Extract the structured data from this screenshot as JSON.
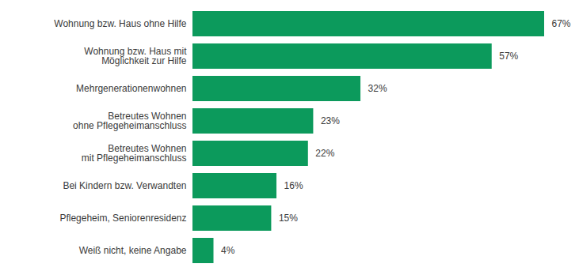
{
  "chart_data": {
    "type": "bar",
    "orientation": "horizontal",
    "categories": [
      "Wohnung bzw. Haus ohne Hilfe",
      "Wohnung bzw. Haus mit\nMöglichkeit zur Hilfe",
      "Mehrgenerationenwohnen",
      "Betreutes Wohnen\nohne Pflegeheimanschluss",
      "Betreutes Wohnen\nmit Pflegeheimanschluss",
      "Bei Kindern bzw. Verwandten",
      "Pflegeheim, Seniorenresidenz",
      "Weiß nicht, keine Angabe"
    ],
    "values": [
      67,
      57,
      32,
      23,
      22,
      16,
      15,
      4
    ],
    "value_labels": [
      "67%",
      "57%",
      "32%",
      "23%",
      "22%",
      "16%",
      "15%",
      "4%"
    ],
    "color": "#0c9a5c",
    "data_labels": true,
    "tick_labels": "y"
  }
}
